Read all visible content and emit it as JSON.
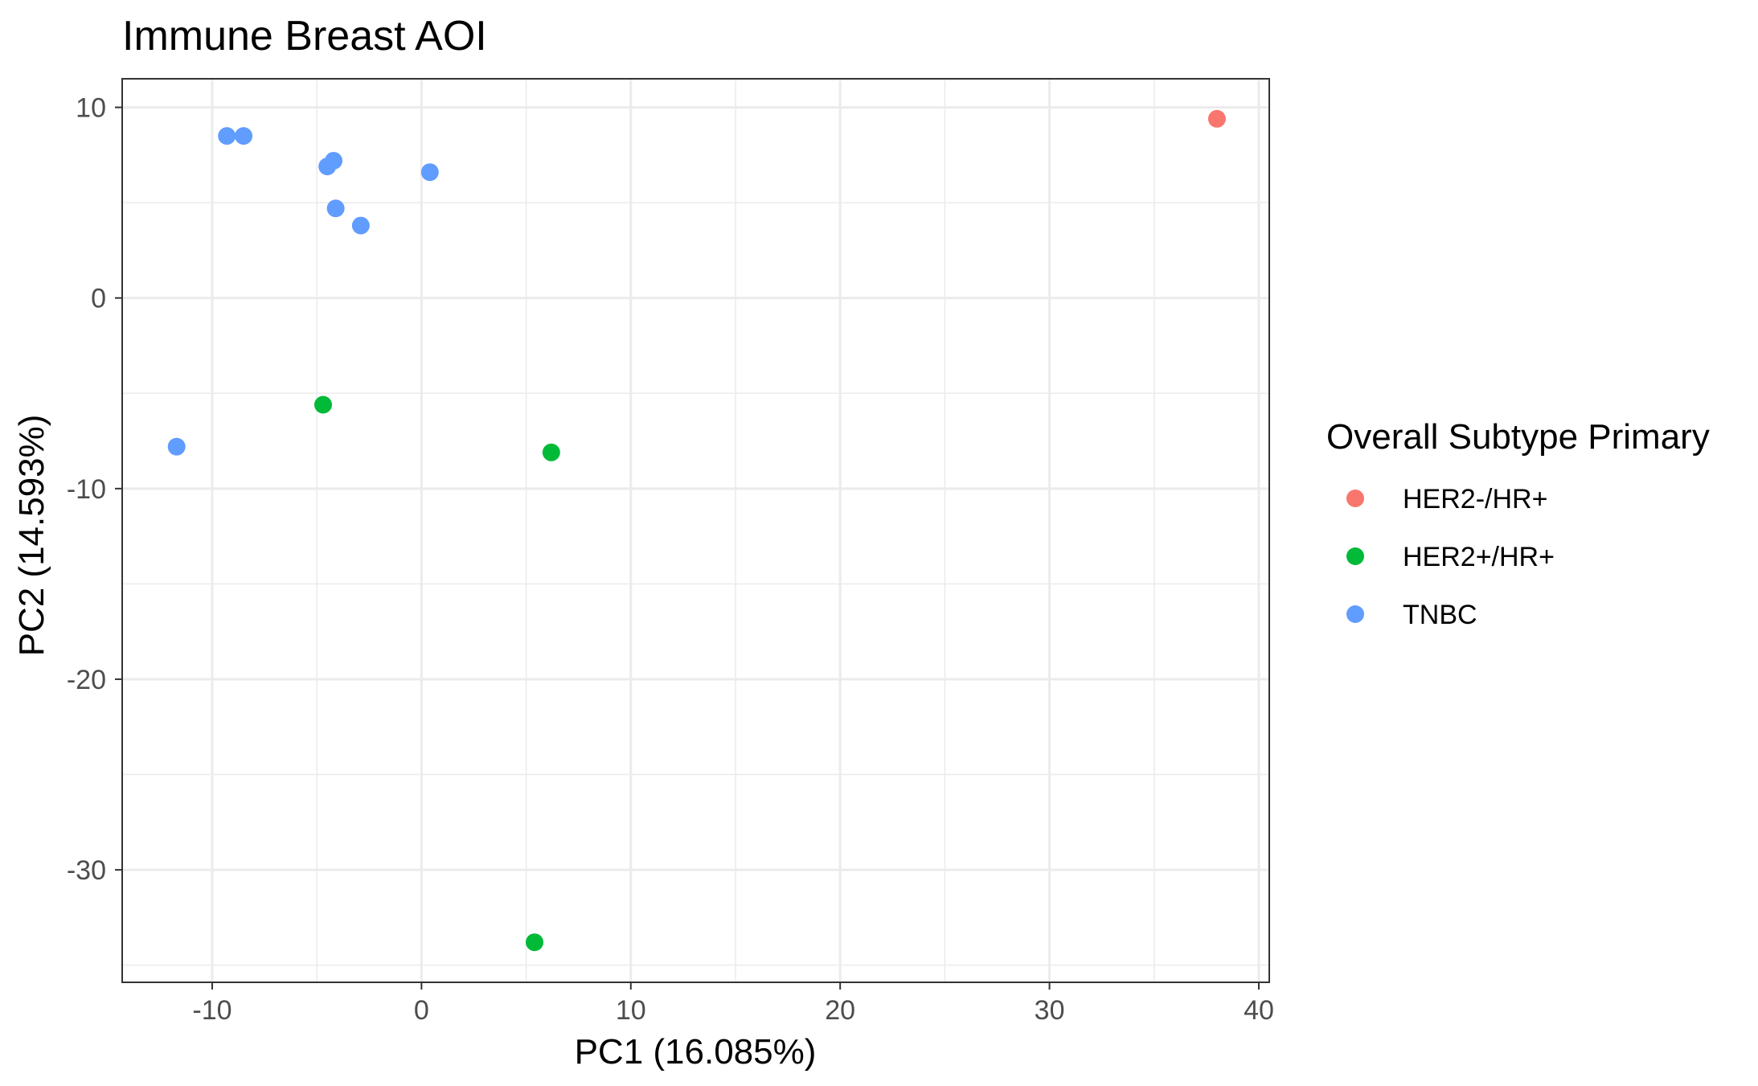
{
  "chart_data": {
    "type": "scatter",
    "title": "Immune Breast AOI",
    "xlabel": "PC1 (16.085%)",
    "ylabel": "PC2 (14.593%)",
    "xlim": [
      -14.3,
      40.5
    ],
    "ylim": [
      -35.9,
      11.5
    ],
    "x_ticks": [
      -10,
      0,
      10,
      20,
      30,
      40
    ],
    "x_tick_labels": [
      "-10",
      "0",
      "10",
      "20",
      "30",
      "40"
    ],
    "y_ticks": [
      10,
      0,
      -10,
      -20,
      -30
    ],
    "y_tick_labels": [
      "10",
      "0",
      "-10",
      "-20",
      "-30"
    ],
    "grid": true,
    "legend": {
      "title": "Overall Subtype Primary",
      "position": "right"
    },
    "series": [
      {
        "name": "HER2-/HR+",
        "color": "#F8766D",
        "points": [
          [
            38.0,
            9.4
          ]
        ]
      },
      {
        "name": "HER2+/HR+",
        "color": "#00BA38",
        "points": [
          [
            -4.7,
            -5.6
          ],
          [
            6.2,
            -8.1
          ],
          [
            5.4,
            -33.8
          ]
        ]
      },
      {
        "name": "TNBC",
        "color": "#619CFF",
        "points": [
          [
            -9.3,
            8.5
          ],
          [
            -8.5,
            8.5
          ],
          [
            -4.5,
            6.9
          ],
          [
            -4.2,
            7.2
          ],
          [
            0.4,
            6.6
          ],
          [
            -4.1,
            4.7
          ],
          [
            -2.9,
            3.8
          ],
          [
            -11.7,
            -7.8
          ]
        ]
      }
    ]
  }
}
